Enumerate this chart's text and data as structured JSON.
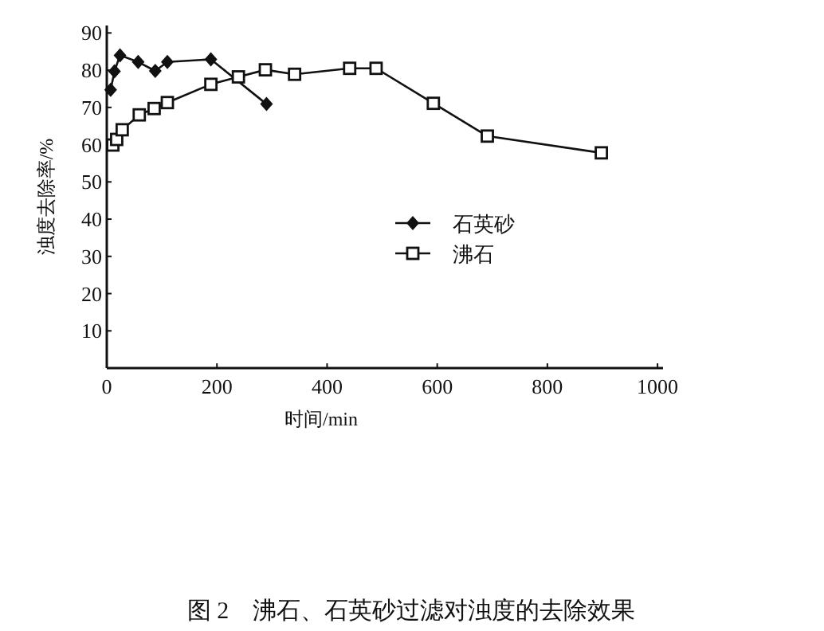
{
  "chart_data": {
    "type": "line",
    "xlabel": "时间/min",
    "ylabel": "浊度去除率/%",
    "xlim": [
      0,
      1010
    ],
    "xticks": [
      0,
      200,
      400,
      600,
      800,
      1000
    ],
    "ylim": [
      0,
      92
    ],
    "yticks": [
      10,
      20,
      30,
      40,
      50,
      60,
      70,
      80,
      90
    ],
    "legend": "right",
    "series": [
      {
        "name": "石英砂",
        "color": "#111111",
        "marker": "diamond",
        "x": [
          7,
          14,
          24,
          57,
          88,
          110,
          189,
          290
        ],
        "values": [
          74.7,
          79.7,
          84.0,
          82.2,
          79.8,
          82.2,
          82.9,
          70.9
        ]
      },
      {
        "name": "沸石",
        "color": "#111111",
        "marker": "square",
        "x": [
          11,
          18,
          28,
          59,
          86,
          110,
          189,
          239,
          288,
          341,
          441,
          489,
          593,
          691,
          898
        ],
        "values": [
          59.9,
          61.4,
          64.0,
          68.0,
          69.7,
          71.3,
          76.2,
          78.2,
          80.1,
          78.9,
          80.5,
          80.5,
          71.1,
          62.3,
          57.8
        ]
      }
    ],
    "annotations": [
      "图 2　沸石、石英砂过滤对浊度的去除效果"
    ]
  }
}
